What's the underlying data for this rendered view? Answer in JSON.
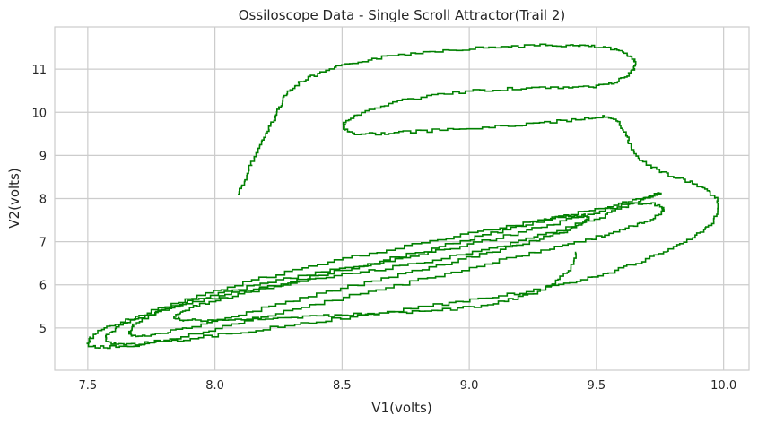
{
  "chart_data": {
    "type": "line",
    "title": "Ossiloscope Data - Single Scroll Attractor(Trail 2)",
    "xlabel": "V1(volts)",
    "ylabel": "V2(volts)",
    "xlim": [
      7.37,
      10.1
    ],
    "ylim": [
      4.02,
      11.98
    ],
    "xticks": [
      7.5,
      8.0,
      8.5,
      9.0,
      9.5,
      10.0
    ],
    "xtick_labels": [
      "7.5",
      "8.0",
      "8.5",
      "9.0",
      "9.5",
      "10.0"
    ],
    "yticks": [
      5,
      6,
      7,
      8,
      9,
      10,
      11
    ],
    "ytick_labels": [
      "5",
      "6",
      "7",
      "8",
      "9",
      "10",
      "11"
    ],
    "grid": true,
    "legend": "none",
    "line_color": "#008000",
    "series": [
      {
        "x": [
          8.09,
          8.12,
          8.14,
          8.17,
          8.2,
          8.23,
          8.25,
          8.27,
          8.3,
          8.34,
          8.4,
          8.48,
          8.58,
          8.7,
          8.84,
          9.0,
          9.15,
          9.28,
          9.38,
          9.47,
          9.55,
          9.61,
          9.65,
          9.65,
          9.62,
          9.56,
          9.47,
          9.35,
          9.2,
          9.04,
          8.88,
          8.74,
          8.63,
          8.55,
          8.51,
          8.51,
          8.55,
          8.62,
          8.72,
          8.86,
          9.02,
          9.18,
          9.32,
          9.44,
          9.52,
          9.58,
          9.61,
          9.63,
          9.66,
          9.72,
          9.8,
          9.88,
          9.93,
          9.97,
          9.98,
          9.96,
          9.91,
          9.84,
          9.76,
          9.66,
          9.55,
          9.42,
          9.28,
          9.12,
          8.95,
          8.77,
          8.59,
          8.4,
          8.22,
          8.04,
          7.88,
          7.74,
          7.62,
          7.54,
          7.5,
          7.51,
          7.56,
          7.66,
          7.8,
          7.96,
          8.14,
          8.34,
          8.54,
          8.74,
          8.94,
          9.12,
          9.3,
          9.45,
          9.57,
          9.66,
          9.72,
          9.75,
          9.74,
          9.7,
          9.63,
          9.53,
          9.4,
          9.25,
          9.08,
          8.89,
          8.7,
          8.5,
          8.3,
          8.12,
          7.96,
          7.82,
          7.7,
          7.61,
          7.57,
          7.58,
          7.64,
          7.74,
          7.87,
          8.03,
          8.21,
          8.4,
          8.6,
          8.8,
          9.0,
          9.18,
          9.34,
          9.48,
          9.59,
          9.67,
          9.73,
          9.76,
          9.76,
          9.72,
          9.65,
          9.55,
          9.43,
          9.28,
          9.11,
          8.93,
          8.74,
          8.55,
          8.36,
          8.18,
          8.01,
          7.87,
          7.75,
          7.68,
          7.66,
          7.69,
          7.77,
          7.89,
          8.04,
          8.21,
          8.4,
          8.59,
          8.78,
          8.96,
          9.12,
          9.26,
          9.37,
          9.44,
          9.47,
          9.45,
          9.39,
          9.29,
          9.16,
          9.0,
          8.82,
          8.63,
          8.44,
          8.26,
          8.09,
          7.96,
          7.87,
          7.84,
          7.88,
          7.97,
          8.1,
          8.25,
          8.4,
          8.55,
          8.7,
          8.85,
          9.0,
          9.14,
          9.25,
          9.34,
          9.4,
          9.42
        ],
        "y": [
          8.1,
          8.45,
          8.8,
          9.15,
          9.5,
          9.82,
          10.1,
          10.35,
          10.55,
          10.72,
          10.88,
          11.05,
          11.2,
          11.32,
          11.42,
          11.48,
          11.53,
          11.55,
          11.55,
          11.53,
          11.48,
          11.38,
          11.22,
          11.02,
          10.82,
          10.65,
          10.58,
          10.56,
          10.55,
          10.5,
          10.4,
          10.26,
          10.08,
          9.9,
          9.72,
          9.58,
          9.5,
          9.5,
          9.53,
          9.58,
          9.63,
          9.7,
          9.78,
          9.85,
          9.9,
          9.8,
          9.55,
          9.25,
          8.95,
          8.7,
          8.5,
          8.35,
          8.2,
          8.0,
          7.75,
          7.45,
          7.18,
          6.95,
          6.72,
          6.48,
          6.25,
          6.05,
          5.88,
          5.73,
          5.58,
          5.43,
          5.28,
          5.13,
          4.98,
          4.84,
          4.72,
          4.62,
          4.56,
          4.55,
          4.62,
          4.78,
          4.98,
          5.22,
          5.5,
          5.8,
          6.1,
          6.38,
          6.65,
          6.9,
          7.12,
          7.32,
          7.52,
          7.7,
          7.85,
          7.98,
          8.08,
          8.12,
          8.1,
          8.0,
          7.82,
          7.58,
          7.32,
          7.05,
          6.8,
          6.58,
          6.38,
          6.2,
          6.02,
          5.84,
          5.64,
          5.43,
          5.2,
          4.98,
          4.78,
          4.65,
          4.6,
          4.66,
          4.8,
          5.02,
          5.28,
          5.56,
          5.84,
          6.12,
          6.4,
          6.65,
          6.88,
          7.08,
          7.26,
          7.42,
          7.56,
          7.7,
          7.82,
          7.9,
          7.88,
          7.75,
          7.55,
          7.3,
          7.05,
          6.82,
          6.6,
          6.4,
          6.2,
          5.99,
          5.77,
          5.53,
          5.28,
          5.05,
          4.88,
          4.8,
          4.85,
          5.0,
          5.23,
          5.5,
          5.78,
          6.05,
          6.32,
          6.58,
          6.82,
          7.04,
          7.24,
          7.42,
          7.55,
          7.62,
          7.6,
          7.48,
          7.28,
          7.02,
          6.75,
          6.48,
          6.22,
          5.98,
          5.75,
          5.55,
          5.38,
          5.25,
          5.18,
          5.17,
          5.2,
          5.24,
          5.28,
          5.32,
          5.36,
          5.4,
          5.48,
          5.62,
          5.82,
          6.08,
          6.4,
          6.75
        ]
      }
    ]
  }
}
